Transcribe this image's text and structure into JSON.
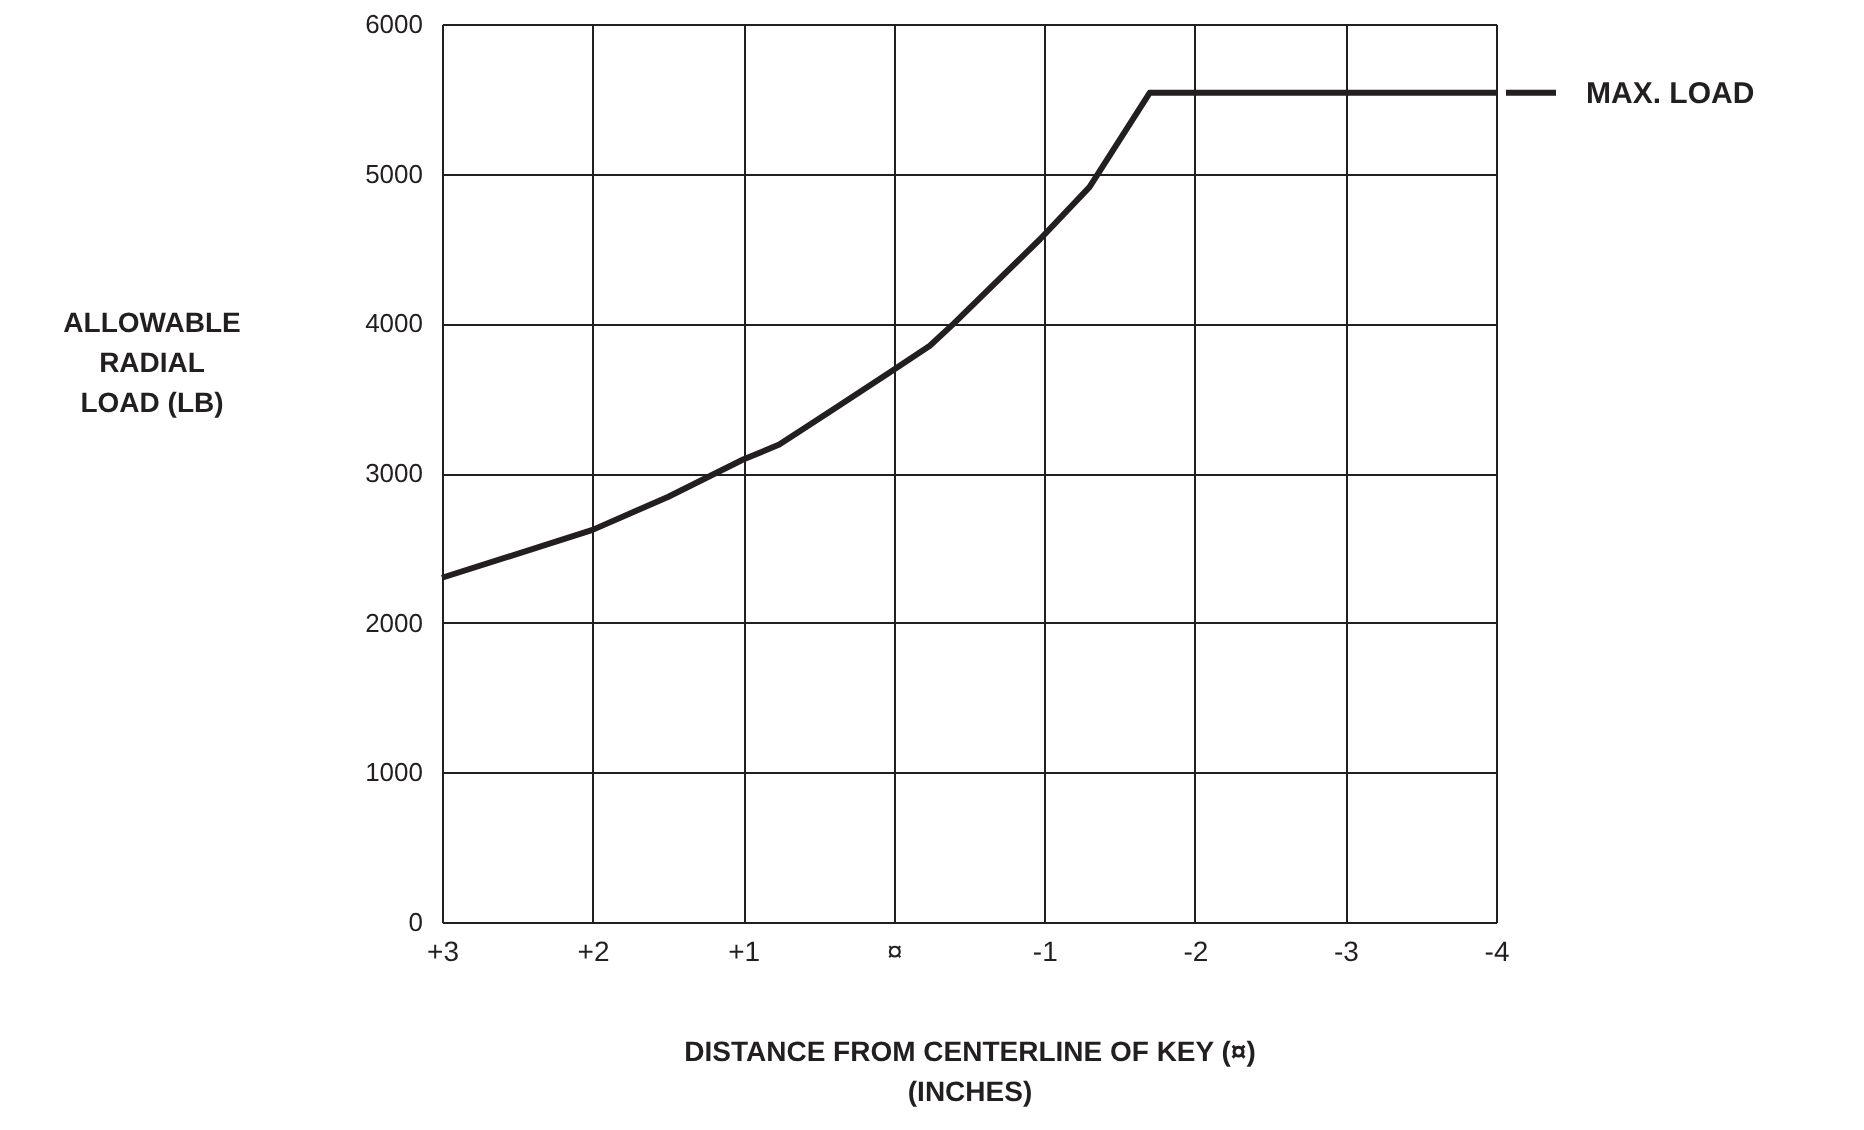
{
  "chart_data": {
    "type": "line",
    "xlabel": "DISTANCE FROM CENTERLINE OF KEY (¤)\n(INCHES)",
    "ylabel": "ALLOWABLE\nRADIAL\nLOAD (LB)",
    "series": [
      {
        "color": "#231f20",
        "x": [
          3,
          2,
          1.5,
          1,
          0.76,
          0.41,
          0.03,
          -0.24,
          -0.4,
          -0.97,
          -1.3,
          -1.7,
          -4
        ],
        "values": [
          2300,
          2620,
          2840,
          3090,
          3190,
          3420,
          3670,
          3850,
          4000,
          4560,
          4910,
          5540,
          5540
        ]
      }
    ],
    "xlim": [
      3,
      -4
    ],
    "ylim": [
      0,
      6000
    ],
    "xticks": [
      {
        "value": 3,
        "label": "+3"
      },
      {
        "value": 2,
        "label": "+2"
      },
      {
        "value": 1,
        "label": "+1"
      },
      {
        "value": 0,
        "label": "¤"
      },
      {
        "value": -1,
        "label": "-1"
      },
      {
        "value": -2,
        "label": "-2"
      },
      {
        "value": -3,
        "label": "-3"
      },
      {
        "value": -4,
        "label": "-4"
      }
    ],
    "yticks": [
      0,
      1000,
      2000,
      3000,
      4000,
      5000,
      6000
    ],
    "grid": true,
    "marker": "none",
    "line_style": "solid",
    "annotations": [
      {
        "text": "MAX. LOAD",
        "x": -4,
        "y": 5540
      }
    ]
  }
}
